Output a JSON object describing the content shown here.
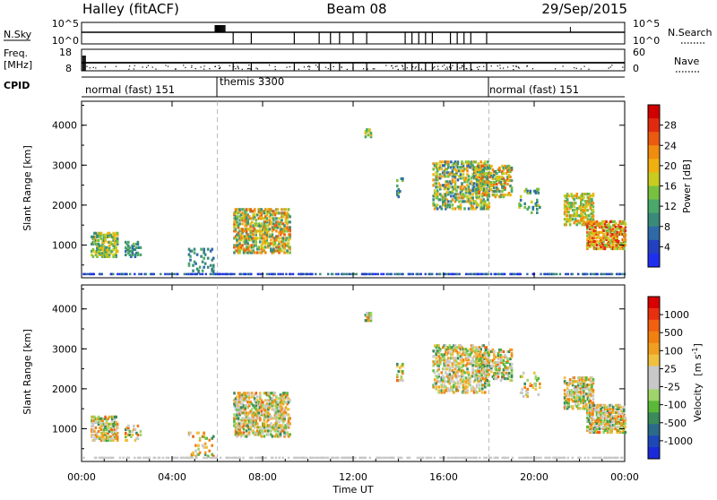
{
  "header": {
    "title": "Halley (fitACF)",
    "beam": "Beam 08",
    "date": "29/Sep/2015"
  },
  "chart_data": [
    {
      "type": "line",
      "panel": "noise-top",
      "left_label": "N.Sky",
      "right_label": "N.Search",
      "left_ticks": [
        "10^5",
        "10^0"
      ],
      "right_ticks": [
        "10^5",
        "10^0"
      ],
      "right_line_style": "dotted"
    },
    {
      "type": "line",
      "panel": "freq-nave",
      "left_label": "Freq.",
      "left_unit": "[MHz]",
      "right_label": "Nave",
      "left_ticks": [
        "18",
        "8"
      ],
      "right_ticks": [
        "60",
        "0"
      ],
      "right_line_style": "dotted"
    },
    {
      "type": "table",
      "panel": "cpid",
      "label": "CPID",
      "segments": [
        {
          "name": "normal (fast) 151",
          "start_hour": 0,
          "end_hour": 6
        },
        {
          "name": "themis 3300",
          "start_hour": 6,
          "end_hour": 18
        },
        {
          "name": "normal (fast) 151",
          "start_hour": 18,
          "end_hour": 24
        }
      ]
    },
    {
      "type": "heatmap",
      "panel": "power",
      "ylabel": "Slant Range [km]",
      "yticks": [
        1000,
        2000,
        3000,
        4000
      ],
      "ylim": [
        180,
        4600
      ],
      "xlim": [
        0,
        24
      ],
      "colorbar": {
        "label": "Power [dB]",
        "ticks": [
          "4",
          "8",
          "12",
          "16",
          "20",
          "24",
          "28"
        ],
        "colors": [
          "#1f2ff0",
          "#2340c0",
          "#2e6aa8",
          "#3a8a7a",
          "#4aa86a",
          "#78c040",
          "#c8cc20",
          "#f0b010",
          "#f08c10",
          "#ea5a10",
          "#e02a10",
          "#d00000"
        ]
      }
    },
    {
      "type": "heatmap",
      "panel": "velocity",
      "ylabel": "Slant Range [km]",
      "yticks": [
        1000,
        2000,
        3000,
        4000
      ],
      "ylim": [
        180,
        4600
      ],
      "xlim": [
        0,
        24
      ],
      "xlabel": "Time UT",
      "xticks": [
        "00:00",
        "04:00",
        "08:00",
        "12:00",
        "16:00",
        "20:00",
        "00:00"
      ],
      "colorbar": {
        "label": "Velocity",
        "unit": "[m s",
        "unit_sup": "-1",
        "unit_close": "]",
        "ticks": [
          "1000",
          "500",
          "100",
          "25",
          "-25",
          "-100",
          "-500",
          "-1000"
        ],
        "colors": [
          "#1a2ad8",
          "#1e48b8",
          "#2a6a8a",
          "#3a8a5a",
          "#5ab838",
          "#9fd46a",
          "#c8c8c8",
          "#c8c8c8",
          "#f0c040",
          "#f0a020",
          "#f08010",
          "#f06010",
          "#e83010",
          "#d80000"
        ]
      }
    }
  ]
}
